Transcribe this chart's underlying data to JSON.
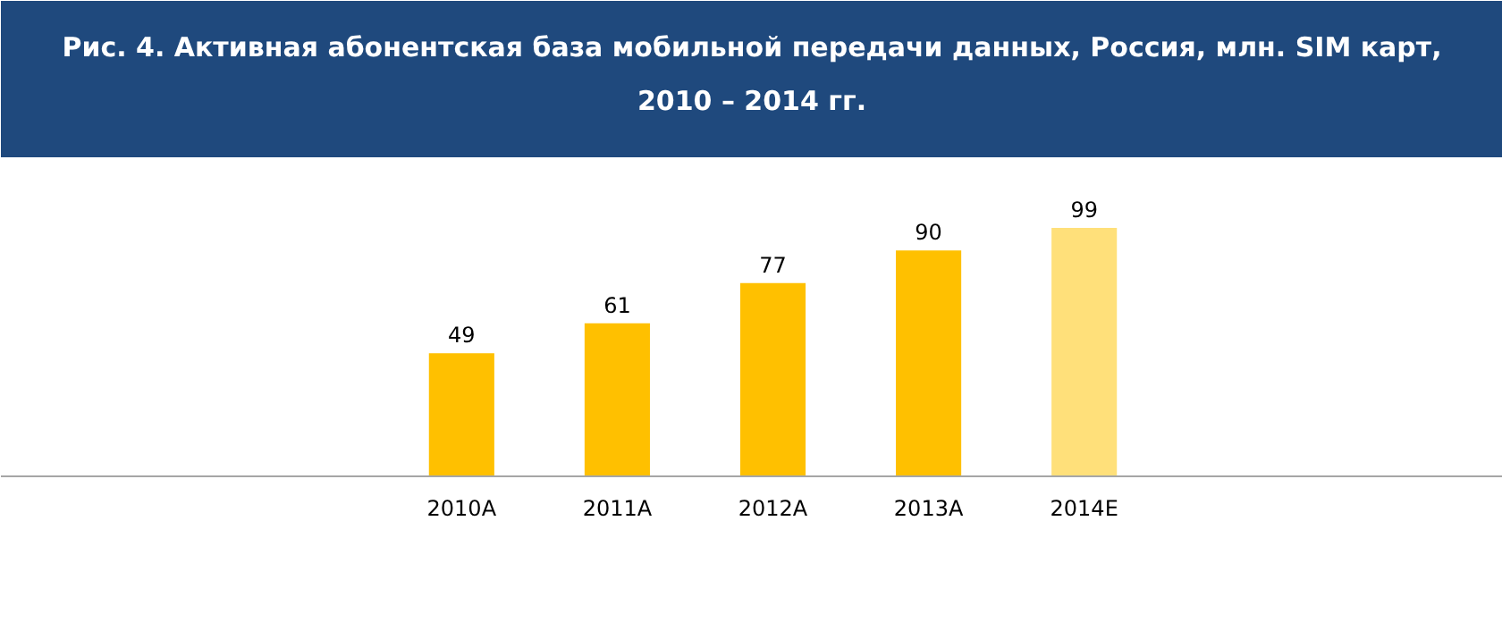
{
  "chart_data": {
    "type": "bar",
    "title": "Рис. 4. Активная абонентская база мобильной передачи данных, Россия, млн. SIM карт, 2010 – 2014 гг.",
    "categories": [
      "2010A",
      "2011A",
      "2012A",
      "2013A",
      "2014E"
    ],
    "values": [
      49,
      61,
      77,
      90,
      99
    ],
    "colors": [
      "#ffc000",
      "#ffc000",
      "#ffc000",
      "#ffc000",
      "#ffe07a"
    ],
    "data_labels": true,
    "grid": false
  }
}
